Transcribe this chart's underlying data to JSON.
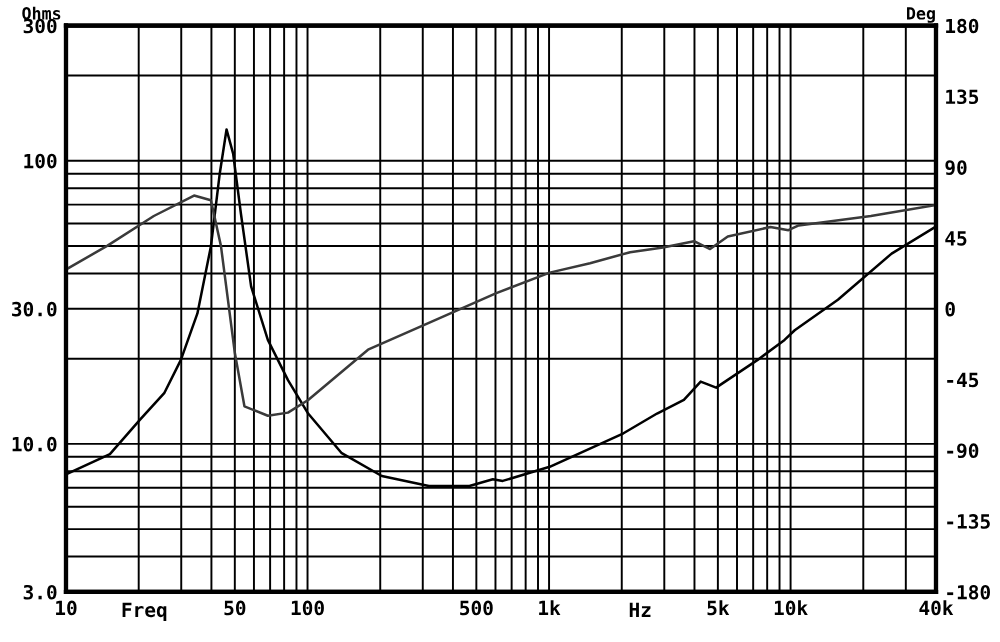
{
  "chart_data": {
    "type": "line",
    "xlabel": "Freq",
    "ylabel": "Ohms",
    "y2label": "Deg",
    "annotations": [
      "Hz"
    ],
    "log": "xy",
    "grid": true,
    "marker": "none",
    "line_style": "solid",
    "xlim": [
      10,
      40000
    ],
    "xticks": [
      10,
      {
        "value": 20,
        "label": null
      },
      {
        "value": 30,
        "label": null
      },
      {
        "value": 40,
        "label": null
      },
      50,
      {
        "value": 60,
        "label": null
      },
      {
        "value": 70,
        "label": null
      },
      {
        "value": 80,
        "label": null
      },
      {
        "value": 90,
        "label": null
      },
      100,
      {
        "value": 200,
        "label": null
      },
      {
        "value": 300,
        "label": null
      },
      {
        "value": 400,
        "label": null
      },
      500,
      {
        "value": 600,
        "label": null
      },
      {
        "value": 700,
        "label": null
      },
      {
        "value": 800,
        "label": null
      },
      {
        "value": 900,
        "label": null
      },
      {
        "value": 1000,
        "label": "1k"
      },
      {
        "value": 2000,
        "label": null
      },
      {
        "value": 3000,
        "label": null
      },
      {
        "value": 4000,
        "label": null
      },
      {
        "value": 5000,
        "label": "5k"
      },
      {
        "value": 6000,
        "label": null
      },
      {
        "value": 7000,
        "label": null
      },
      {
        "value": 8000,
        "label": null
      },
      {
        "value": 9000,
        "label": null
      },
      {
        "value": 10000,
        "label": "10k"
      },
      {
        "value": 20000,
        "label": null
      },
      {
        "value": 30000,
        "label": null
      },
      {
        "value": 40000,
        "label": "40k"
      }
    ],
    "ylim": [
      3,
      300
    ],
    "yticks": [
      {
        "value": 3,
        "label": "3.0"
      },
      {
        "value": 4,
        "label": null
      },
      {
        "value": 5,
        "label": null
      },
      {
        "value": 6,
        "label": null
      },
      {
        "value": 7,
        "label": null
      },
      {
        "value": 8,
        "label": null
      },
      {
        "value": 9,
        "label": null
      },
      {
        "value": 10,
        "label": "10.0"
      },
      {
        "value": 20,
        "label": null
      },
      {
        "value": 30,
        "label": "30.0"
      },
      {
        "value": 40,
        "label": null
      },
      {
        "value": 50,
        "label": null
      },
      {
        "value": 60,
        "label": null
      },
      {
        "value": 70,
        "label": null
      },
      {
        "value": 80,
        "label": null
      },
      {
        "value": 90,
        "label": null
      },
      100,
      {
        "value": 200,
        "label": null
      },
      300
    ],
    "y2lim": [
      -180,
      180
    ],
    "y2ticks": [
      -180,
      -135,
      -90,
      -45,
      0,
      45,
      90,
      135,
      180
    ],
    "series": [
      {
        "color": "#000000",
        "x": [
          10,
          15.2,
          20.3,
          25.5,
          29.9,
          35,
          39.8,
          43.3,
          46.2,
          49.2,
          53,
          58.4,
          68.5,
          83,
          100.6,
          138,
          203,
          318,
          468,
          585,
          643,
          1006,
          2033,
          2800,
          3616,
          4244,
          4917,
          7305,
          9441,
          10400,
          15700,
          26200,
          40000
        ],
        "values": [
          7.8,
          9.2,
          12.2,
          15.1,
          19.8,
          28.9,
          49.8,
          90,
          129,
          106,
          65,
          36,
          23.3,
          16.8,
          12.8,
          9.3,
          7.7,
          7.1,
          7.1,
          7.5,
          7.4,
          8.3,
          10.9,
          12.8,
          14.3,
          16.6,
          15.8,
          19.8,
          23.3,
          25.2,
          32.3,
          47,
          58.6
        ]
      },
      {
        "color": "#3a3a3a",
        "axis": "y2",
        "x": [
          10,
          14.8,
          23.1,
          33.9,
          39.8,
          43.8,
          50,
          54.8,
          68.5,
          83,
          100.6,
          178,
          318,
          605,
          1006,
          1478,
          2166,
          2963,
          3981,
          4642,
          5495,
          8254,
          9800,
          10800,
          21500,
          40000
        ],
        "values": [
          25,
          40,
          59,
          72,
          69,
          40,
          -28,
          -62,
          -68,
          -66,
          -58,
          -26,
          -9,
          10,
          23,
          29,
          36,
          39,
          43,
          38,
          46,
          52,
          50,
          53,
          59,
          66
        ]
      }
    ]
  }
}
